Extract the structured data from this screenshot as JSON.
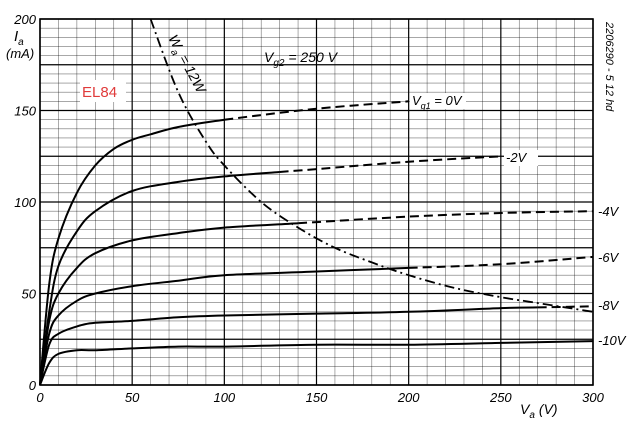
{
  "chart_data": {
    "type": "line",
    "title": "",
    "model_label": "EL84",
    "doc_code": "2206290 - 5 12 hd",
    "xlabel": "V",
    "xlabel_sub": "a",
    "xunit": "(V)",
    "ylabel": "I",
    "ylabel_sub": "a",
    "yunit": "(mA)",
    "xlim": [
      0,
      300
    ],
    "ylim": [
      0,
      200
    ],
    "x_ticks": [
      0,
      50,
      100,
      150,
      200,
      250,
      300
    ],
    "y_ticks": [
      0,
      50,
      100,
      150,
      200
    ],
    "grid": true,
    "annotations": {
      "vg2": "V",
      "vg2_sub": "g2",
      "vg2_value": " = 250 V",
      "wa": "W",
      "wa_sub": "a",
      "wa_value": " = 12W"
    },
    "series": [
      {
        "label": "V",
        "label_sub": "g1",
        "label_value": " = 0V",
        "x": [
          0,
          5,
          10,
          20,
          30,
          40,
          50,
          60,
          75,
          100,
          150,
          200
        ],
        "y": [
          0,
          55,
          80,
          105,
          120,
          129,
          134,
          137,
          141,
          145,
          151,
          155
        ],
        "dashed_from": 100
      },
      {
        "label": "-2V",
        "x": [
          0,
          5,
          10,
          20,
          30,
          50,
          75,
          100,
          150,
          200,
          250
        ],
        "y": [
          0,
          40,
          65,
          84,
          95,
          106,
          111,
          114,
          118,
          122,
          125
        ],
        "dashed_from": 130
      },
      {
        "label": "-4V",
        "x": [
          0,
          5,
          10,
          20,
          30,
          50,
          75,
          100,
          150,
          200,
          250,
          300
        ],
        "y": [
          0,
          35,
          50,
          64,
          72,
          79,
          83,
          86,
          89,
          92,
          94,
          95
        ],
        "dashed_from": 140
      },
      {
        "label": "-6V",
        "x": [
          0,
          5,
          10,
          20,
          30,
          50,
          75,
          100,
          150,
          200,
          250,
          300
        ],
        "y": [
          0,
          28,
          38,
          46,
          50,
          54,
          57,
          60,
          62,
          64,
          66,
          70
        ],
        "dashed_from": 200
      },
      {
        "label": "-8V",
        "x": [
          0,
          5,
          10,
          20,
          30,
          50,
          75,
          100,
          150,
          200,
          250,
          300
        ],
        "y": [
          0,
          22,
          28,
          32,
          34,
          35,
          37,
          38,
          39,
          40,
          42,
          43
        ],
        "dashed_from": 270
      },
      {
        "label": "-10V",
        "x": [
          0,
          5,
          10,
          20,
          30,
          50,
          75,
          100,
          150,
          200,
          250,
          300
        ],
        "y": [
          0,
          12,
          17,
          19,
          19,
          20,
          21,
          21,
          22,
          22,
          23,
          24
        ],
        "dashed_from": null
      }
    ],
    "power_hyperbola": {
      "x": [
        60,
        75,
        90,
        100,
        120,
        140,
        160,
        180,
        200,
        225,
        250,
        275,
        300
      ],
      "y": [
        200,
        160,
        133,
        120,
        100,
        86,
        75,
        67,
        60,
        53,
        48,
        44,
        40
      ]
    }
  }
}
